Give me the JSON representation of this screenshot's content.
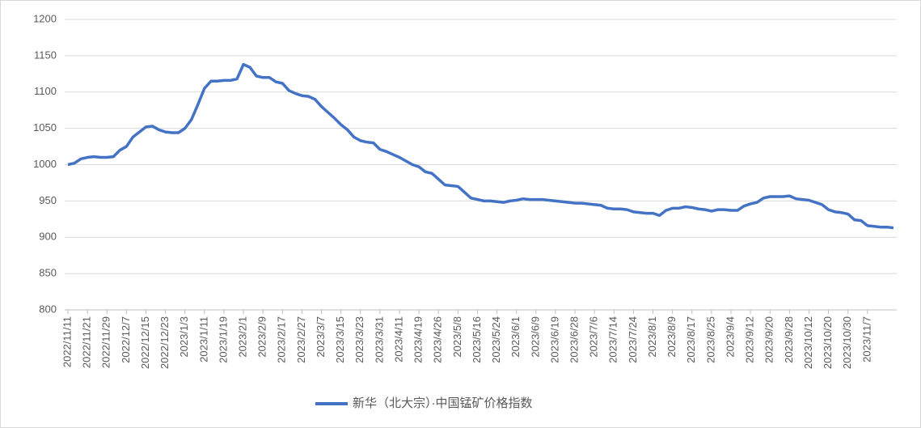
{
  "chart_data": {
    "type": "line",
    "categories": [
      "2022/11/11",
      null,
      null,
      "2022/11/21",
      null,
      null,
      "2022/11/29",
      null,
      null,
      "2022/12/7",
      null,
      null,
      "2022/12/15",
      null,
      null,
      "2022/12/23",
      null,
      null,
      "2023/1/3",
      null,
      null,
      "2023/1/11",
      null,
      null,
      "2023/1/19",
      null,
      null,
      "2023/2/1",
      null,
      null,
      "2023/2/9",
      null,
      null,
      "2023/2/17",
      null,
      null,
      "2023/2/27",
      null,
      null,
      "2023/3/7",
      null,
      null,
      "2023/3/15",
      null,
      null,
      "2023/3/23",
      null,
      null,
      "2023/3/31",
      null,
      null,
      "2023/4/11",
      null,
      null,
      "2023/4/19",
      null,
      null,
      "2023/4/26",
      null,
      null,
      "2023/5/8",
      null,
      null,
      "2023/5/16",
      null,
      null,
      "2023/5/24",
      null,
      null,
      "2023/6/1",
      null,
      null,
      "2023/6/9",
      null,
      null,
      "2023/6/19",
      null,
      null,
      "2023/6/28",
      null,
      null,
      "2023/7/6",
      null,
      null,
      "2023/7/14",
      null,
      null,
      "2023/7/24",
      null,
      null,
      "2023/8/1",
      null,
      null,
      "2023/8/9",
      null,
      null,
      "2023/8/17",
      null,
      null,
      "2023/8/25",
      null,
      null,
      "2023/9/4",
      null,
      null,
      "2023/9/12",
      null,
      null,
      "2023/9/20",
      null,
      null,
      "2023/9/28",
      null,
      null,
      "2023/10/12",
      null,
      null,
      "2023/10/20",
      null,
      null,
      "2023/10/30",
      null,
      null,
      "2023/11/7",
      null,
      null,
      null,
      null
    ],
    "series": [
      {
        "name": "新华（北大宗）·中国锰矿价格指数",
        "color": "#4472c4",
        "values": [
          1000,
          1002,
          1008,
          1010,
          1011,
          1010,
          1010,
          1011,
          1020,
          1025,
          1038,
          1045,
          1052,
          1053,
          1048,
          1045,
          1044,
          1044,
          1050,
          1062,
          1083,
          1105,
          1115,
          1115,
          1116,
          1116,
          1118,
          1138,
          1134,
          1122,
          1120,
          1120,
          1114,
          1112,
          1102,
          1098,
          1095,
          1094,
          1090,
          1080,
          1072,
          1064,
          1055,
          1048,
          1038,
          1033,
          1031,
          1030,
          1021,
          1018,
          1014,
          1010,
          1005,
          1000,
          997,
          990,
          988,
          980,
          972,
          971,
          970,
          962,
          954,
          952,
          950,
          950,
          949,
          948,
          950,
          951,
          953,
          952,
          952,
          952,
          951,
          950,
          949,
          948,
          947,
          947,
          946,
          945,
          944,
          940,
          939,
          939,
          938,
          935,
          934,
          933,
          933,
          930,
          937,
          940,
          940,
          942,
          941,
          939,
          938,
          936,
          938,
          938,
          937,
          937,
          943,
          946,
          948,
          954,
          956,
          956,
          956,
          957,
          953,
          952,
          951,
          948,
          945,
          938,
          935,
          934,
          932,
          924,
          923,
          916,
          915,
          914,
          914,
          913
        ]
      }
    ],
    "ylim": [
      800,
      1200
    ],
    "yticks": [
      800,
      850,
      900,
      950,
      1000,
      1050,
      1100,
      1150,
      1200
    ],
    "grid": true,
    "legend": "bottom"
  }
}
